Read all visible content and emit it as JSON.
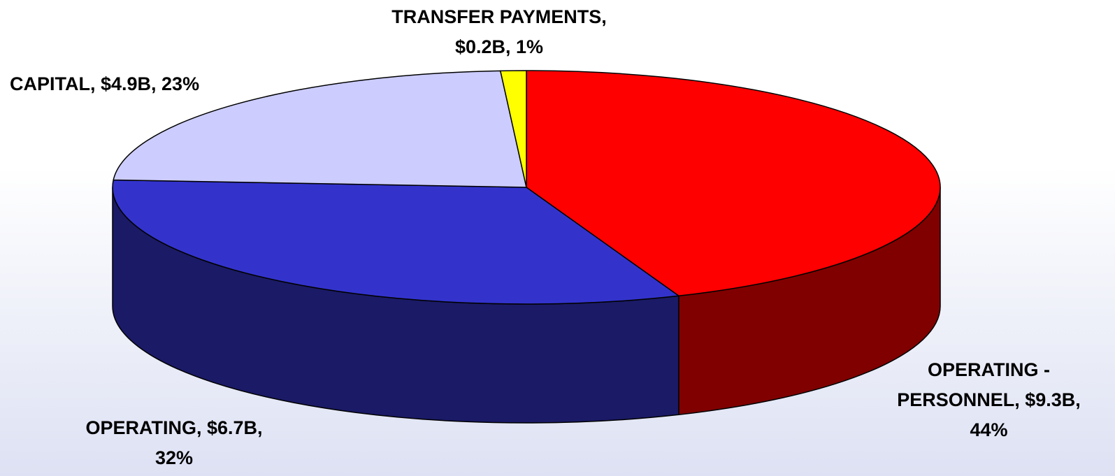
{
  "chart_data": {
    "type": "pie3d",
    "values": [
      44,
      32,
      23,
      1
    ],
    "value_labels": [
      "OPERATING - PERSONNEL, $9.3B, 44%",
      "OPERATING, $6.7B, 32%",
      "CAPITAL, $4.9B, 23%",
      "TRANSFER PAYMENTS, $0.2B, 1%"
    ],
    "colors": [
      "#ff0000",
      "#3333cc",
      "#ccccff",
      "#ffff00"
    ]
  }
}
